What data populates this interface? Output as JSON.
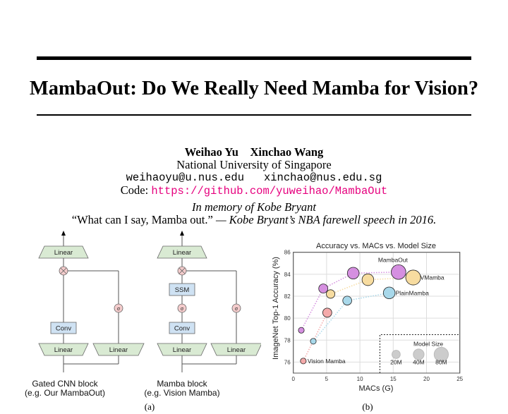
{
  "paper": {
    "title": "MambaOut: Do We Really Need Mamba for Vision?",
    "authors": [
      "Weihao Yu",
      "Xinchao Wang"
    ],
    "affiliation": "National University of Singapore",
    "emails": [
      "weihaoyu@u.nus.edu",
      "xinchao@nus.edu.sg"
    ],
    "code_label": "Code:",
    "code_url": "https://github.com/yuweihao/MambaOut",
    "memory": "In memory of Kobe Bryant",
    "quote": "“What can I say, Mamba out.”",
    "quote_source": " — Kobe Bryant’s NBA farewell speech in 2016."
  },
  "figure_a": {
    "label": "(a)",
    "gated_cnn": {
      "linear_top": "Linear",
      "conv": "Conv",
      "linear_left": "Linear",
      "linear_right": "Linear",
      "sigma": "σ",
      "caption_line1": "Gated CNN block",
      "caption_line2": "(e.g. Our MambaOut)"
    },
    "mamba": {
      "linear_top": "Linear",
      "ssm": "SSM",
      "conv": "Conv",
      "linear_left": "Linear",
      "linear_right": "Linear",
      "sigma": "σ",
      "caption_line1": "Mamba block",
      "caption_line2": "(e.g. Vision Mamba)"
    }
  },
  "figure_b": {
    "label": "(b)"
  },
  "chart_data": {
    "type": "scatter",
    "title": "Accuracy vs. MACs vs. Model Size",
    "xlabel": "MACs (G)",
    "ylabel": "ImageNet Top-1 Accuracy (%)",
    "xlim": [
      0,
      25
    ],
    "ylim": [
      75,
      86
    ],
    "xticks": [
      "0",
      "5",
      "10",
      "15",
      "20",
      "25"
    ],
    "yticks": [
      "76",
      "78",
      "80",
      "82",
      "84",
      "86"
    ],
    "grid": true,
    "series": [
      {
        "name": "MambaOut",
        "color": "#d58fe0",
        "x": [
          1.2,
          4.5,
          9.0,
          15.8
        ],
        "y": [
          78.9,
          82.7,
          84.1,
          84.2
        ],
        "size_m": [
          7,
          26,
          50,
          85
        ]
      },
      {
        "name": "VMamba",
        "color": "#f7dca0",
        "x": [
          5.6,
          11.2,
          18.0
        ],
        "y": [
          82.2,
          83.5,
          83.7
        ],
        "size_m": [
          22,
          50,
          89
        ]
      },
      {
        "name": "PlainMamba",
        "color": "#a8d8ea",
        "x": [
          3.0,
          8.1,
          14.4
        ],
        "y": [
          77.9,
          81.6,
          82.3
        ],
        "size_m": [
          7,
          25,
          50
        ]
      },
      {
        "name": "Vision Mamba",
        "color": "#f4aaaa",
        "x": [
          1.5,
          5.1
        ],
        "y": [
          76.1,
          80.5
        ],
        "size_m": [
          7,
          26
        ]
      }
    ],
    "size_legend": {
      "title": "Model Size",
      "entries": [
        "20M",
        "40M",
        "80M"
      ],
      "values_m": [
        20,
        40,
        80
      ]
    }
  }
}
